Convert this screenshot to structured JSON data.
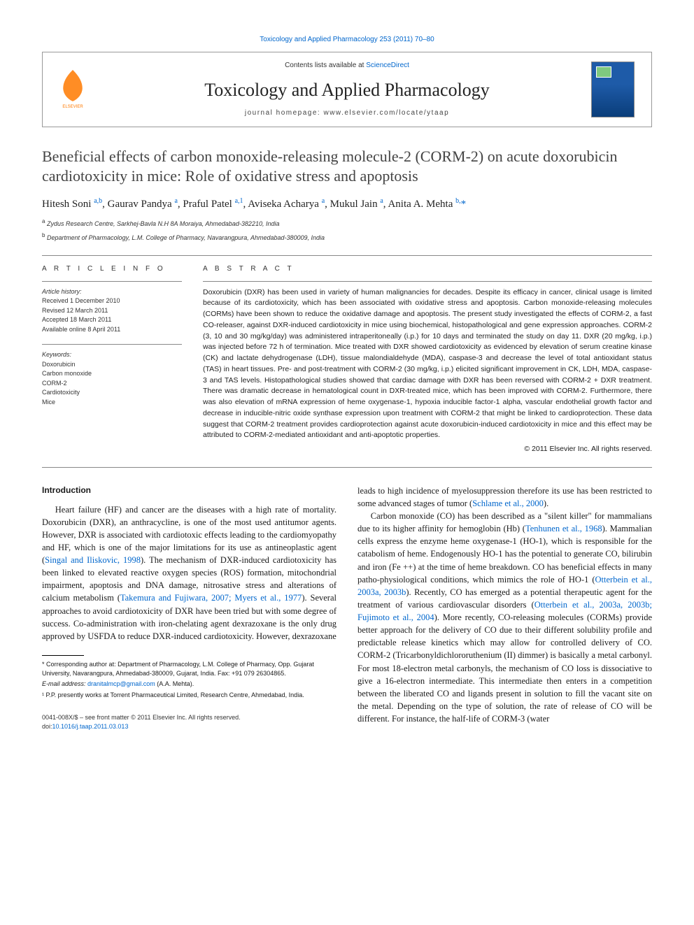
{
  "top_journal_ref": "Toxicology and Applied Pharmacology 253 (2011) 70–80",
  "header": {
    "contents_prefix": "Contents lists available at ",
    "contents_link": "ScienceDirect",
    "journal_title": "Toxicology and Applied Pharmacology",
    "homepage_prefix": "journal homepage: ",
    "homepage_url": "www.elsevier.com/locate/ytaap"
  },
  "article": {
    "title": "Beneficial effects of carbon monoxide-releasing molecule-2 (CORM-2) on acute doxorubicin cardiotoxicity in mice: Role of oxidative stress and apoptosis",
    "authors_html": "Hitesh Soni <sup>a,b</sup>, Gaurav Pandya <sup>a</sup>, Praful Patel <sup>a,1</sup>, Aviseka Acharya <sup>a</sup>, Mukul Jain <sup>a</sup>, Anita A. Mehta <sup>b,</sup><span class='star'>*</span>",
    "affiliations": [
      {
        "sup": "a",
        "text": "Zydus Research Centre, Sarkhej-Bavla N.H 8A Moraiya, Ahmedabad-382210, India"
      },
      {
        "sup": "b",
        "text": "Department of Pharmacology, L.M. College of Pharmacy, Navarangpura, Ahmedabad-380009, India"
      }
    ]
  },
  "article_info": {
    "heading": "A R T I C L E   I N F O",
    "history_label": "Article history:",
    "history": [
      "Received 1 December 2010",
      "Revised 12 March 2011",
      "Accepted 18 March 2011",
      "Available online 8 April 2011"
    ],
    "keywords_label": "Keywords:",
    "keywords": [
      "Doxorubicin",
      "Carbon monoxide",
      "CORM-2",
      "Cardiotoxicity",
      "Mice"
    ]
  },
  "abstract": {
    "heading": "A B S T R A C T",
    "text": "Doxorubicin (DXR) has been used in variety of human malignancies for decades. Despite its efficacy in cancer, clinical usage is limited because of its cardiotoxicity, which has been associated with oxidative stress and apoptosis. Carbon monoxide-releasing molecules (CORMs) have been shown to reduce the oxidative damage and apoptosis. The present study investigated the effects of CORM-2, a fast CO-releaser, against DXR-induced cardiotoxicity in mice using biochemical, histopathological and gene expression approaches. CORM-2 (3, 10 and 30 mg/kg/day) was administered intraperitoneally (i.p.) for 10 days and terminated the study on day 11. DXR (20 mg/kg, i.p.) was injected before 72 h of termination. Mice treated with DXR showed cardiotoxicity as evidenced by elevation of serum creatine kinase (CK) and lactate dehydrogenase (LDH), tissue malondialdehyde (MDA), caspase-3 and decrease the level of total antioxidant status (TAS) in heart tissues. Pre- and post-treatment with CORM-2 (30 mg/kg, i.p.) elicited significant improvement in CK, LDH, MDA, caspase-3 and TAS levels. Histopathological studies showed that cardiac damage with DXR has been reversed with CORM-2 + DXR treatment. There was dramatic decrease in hematological count in DXR-treated mice, which has been improved with CORM-2. Furthermore, there was also elevation of mRNA expression of heme oxygenase-1, hypoxia inducible factor-1 alpha, vascular endothelial growth factor and decrease in inducible-nitric oxide synthase expression upon treatment with CORM-2 that might be linked to cardioprotection. These data suggest that CORM-2 treatment provides cardioprotection against acute doxorubicin-induced cardiotoxicity in mice and this effect may be attributed to CORM-2-mediated antioxidant and anti-apoptotic properties.",
    "copyright": "© 2011 Elsevier Inc. All rights reserved."
  },
  "introduction": {
    "heading": "Introduction",
    "col1_p1": "Heart failure (HF) and cancer are the diseases with a high rate of mortality. Doxorubicin (DXR), an anthracycline, is one of the most used antitumor agents. However, DXR is associated with cardiotoxic effects leading to the cardiomyopathy and HF, which is one of the major limitations for its use as antineoplastic agent (<span class='cite'>Singal and Iliskovic, 1998</span>). The mechanism of DXR-induced cardiotoxicity has been linked to elevated reactive oxygen species (ROS) formation, mitochondrial impairment, apoptosis and DNA damage, nitrosative stress and alterations of calcium metabolism (<span class='cite'>Takemura and Fujiwara, 2007; Myers et al., 1977</span>). Several approaches to avoid cardiotoxicity of DXR have been tried but with some degree of success. Co-administration with iron-chelating agent dexrazoxane is the only drug approved by USFDA to reduce DXR-induced cardiotoxicity. However, dexrazoxane",
    "col2_p1": "leads to high incidence of myelosuppression therefore its use has been restricted to some advanced stages of tumor (<span class='cite'>Schlame et al., 2000</span>).",
    "col2_p2": "Carbon monoxide (CO) has been described as a \"silent killer\" for mammalians due to its higher affinity for hemoglobin (Hb) (<span class='cite'>Tenhunen et al., 1968</span>). Mammalian cells express the enzyme heme oxygenase-1 (HO-1), which is responsible for the catabolism of heme. Endogenously HO-1 has the potential to generate CO, bilirubin and iron (Fe ++) at the time of heme breakdown. CO has beneficial effects in many patho-physiological conditions, which mimics the role of HO-1 (<span class='cite'>Otterbein et al., 2003a, 2003b</span>). Recently, CO has emerged as a potential therapeutic agent for the treatment of various cardiovascular disorders (<span class='cite'>Otterbein et al., 2003a, 2003b; Fujimoto et al., 2004</span>). More recently, CO-releasing molecules (CORMs) provide better approach for the delivery of CO due to their different solubility profile and predictable release kinetics which may allow for controlled delivery of CO. CORM-2 (Tricarbonyldichlororuthenium (II) dimmer) is basically a metal carbonyl. For most 18-electron metal carbonyls, the mechanism of CO loss is dissociative to give a 16-electron intermediate. This intermediate then enters in a competition between the liberated CO and ligands present in solution to fill the vacant site on the metal. Depending on the type of solution, the rate of release of CO will be different. For instance, the half-life of CORM-3 (water"
  },
  "footnotes": {
    "corresponding": "* Corresponding author at: Department of Pharmacology, L.M. College of Pharmacy, Opp. Gujarat University, Navarangpura, Ahmedabad-380009, Gujarat, India. Fax: +91 079 26304865.",
    "email_label": "E-mail address: ",
    "email": "dranitalmcp@gmail.com",
    "email_suffix": " (A.A. Mehta).",
    "note1": "¹ P.P. presently works at Torrent Pharmaceutical Limited, Research Centre, Ahmedabad, India."
  },
  "footer": {
    "line1": "0041-008X/$ – see front matter © 2011 Elsevier Inc. All rights reserved.",
    "doi_label": "doi:",
    "doi": "10.1016/j.taap.2011.03.013"
  },
  "colors": {
    "link": "#0066cc",
    "elsevier_orange": "#ff7a00",
    "text": "#1a1a1a"
  }
}
